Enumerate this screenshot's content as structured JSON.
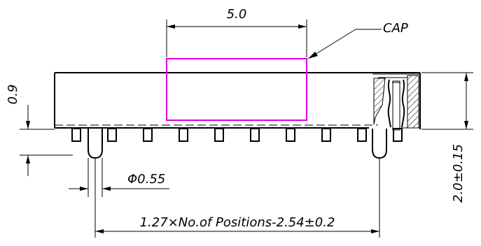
{
  "drawing": {
    "cap_width": "5.0",
    "cap_label": "CAP",
    "body_height": "0.9",
    "total_height": "2.0±0.15",
    "pin_diameter": "Φ0.55",
    "pitch_formula": "1.27×No.of Positions-2.54±0.2",
    "colors": {
      "line": "#000000",
      "cap_outline": "#e000e0",
      "background": "#ffffff"
    }
  }
}
